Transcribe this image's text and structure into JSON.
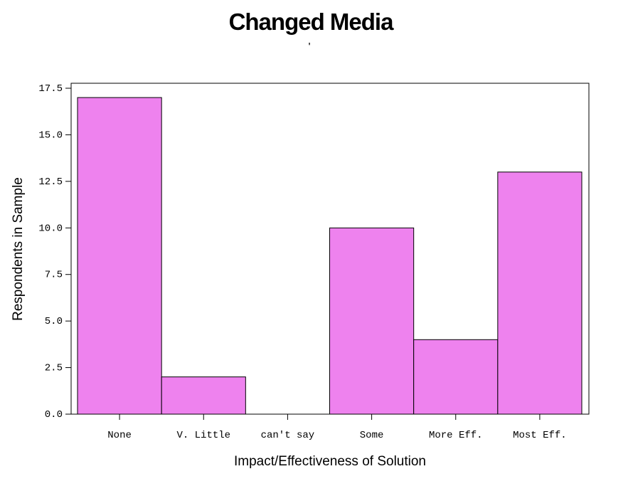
{
  "chart_data": {
    "type": "bar",
    "title": "Changed Media",
    "subtitle": "'",
    "xlabel": "Impact/Effectiveness of Solution",
    "ylabel": "Respondents in Sample",
    "categories": [
      "None",
      "V. Little",
      "can't say",
      "Some",
      "More Eff.",
      "Most Eff."
    ],
    "values": [
      17,
      2,
      0,
      10,
      4,
      13
    ],
    "ylim": [
      0,
      17.5
    ],
    "yticks": [
      "0.0",
      "2.5",
      "5.0",
      "7.5",
      "10.0",
      "12.5",
      "15.0",
      "17.5"
    ],
    "grid": false,
    "legend": "none",
    "bar_color": "#ee82ee"
  }
}
